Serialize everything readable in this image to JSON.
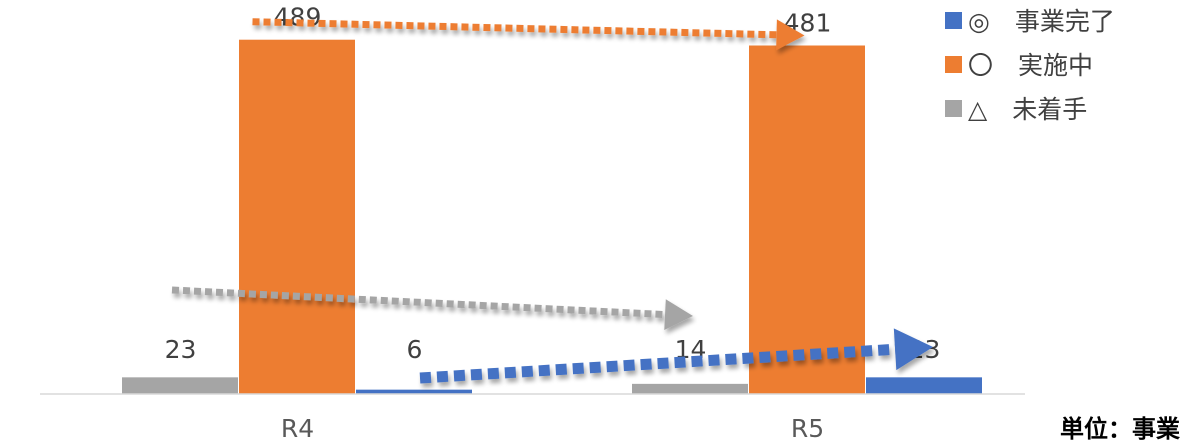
{
  "chart_data": {
    "type": "bar",
    "categories": [
      "R4",
      "R5"
    ],
    "series": [
      {
        "name": "△　未着手",
        "key": "gray",
        "values": [
          23,
          14
        ],
        "color": "#a5a5a5"
      },
      {
        "name": "〇　実施中",
        "key": "orange",
        "values": [
          489,
          481
        ],
        "color": "#ed7d31"
      },
      {
        "name": "◎　事業完了",
        "key": "blue",
        "values": [
          6,
          23
        ],
        "color": "#4472c4"
      }
    ],
    "legend": {
      "placement": "top-right",
      "order": [
        "blue",
        "orange",
        "gray"
      ]
    },
    "unit_label": "単位：事業",
    "ylim": [
      0,
      530
    ],
    "grid": false,
    "annotations": [
      {
        "type": "dotted-arrow",
        "series": "orange",
        "from": "R4",
        "to": "R5"
      },
      {
        "type": "dotted-arrow",
        "series": "gray",
        "from": "R4",
        "to": "R5"
      },
      {
        "type": "dotted-arrow",
        "series": "blue",
        "from": "R4",
        "to": "R5"
      }
    ]
  }
}
